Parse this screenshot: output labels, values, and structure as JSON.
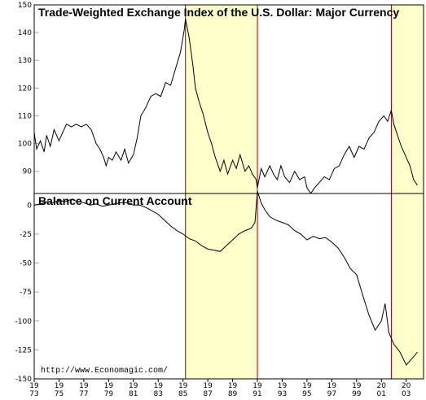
{
  "colors": {
    "shade": "#ffffcc",
    "recession_line": "#990000",
    "series": "#000000",
    "grid": "#aaaaaa"
  },
  "credit": "http://www.Economagic.com/",
  "x_year_range": [
    1973,
    2004.4
  ],
  "x_ticks": [
    {
      "year": 1973,
      "top": "19",
      "bottom": "73"
    },
    {
      "year": 1975,
      "top": "19",
      "bottom": "75"
    },
    {
      "year": 1977,
      "top": "19",
      "bottom": "77"
    },
    {
      "year": 1979,
      "top": "19",
      "bottom": "79"
    },
    {
      "year": 1981,
      "top": "19",
      "bottom": "81"
    },
    {
      "year": 1983,
      "top": "19",
      "bottom": "83"
    },
    {
      "year": 1985,
      "top": "19",
      "bottom": "85"
    },
    {
      "year": 1987,
      "top": "19",
      "bottom": "87"
    },
    {
      "year": 1989,
      "top": "19",
      "bottom": "89"
    },
    {
      "year": 1991,
      "top": "19",
      "bottom": "91"
    },
    {
      "year": 1993,
      "top": "19",
      "bottom": "93"
    },
    {
      "year": 1995,
      "top": "19",
      "bottom": "95"
    },
    {
      "year": 1997,
      "top": "19",
      "bottom": "97"
    },
    {
      "year": 1999,
      "top": "19",
      "bottom": "99"
    },
    {
      "year": 2001,
      "top": "20",
      "bottom": "01"
    },
    {
      "year": 2003,
      "top": "20",
      "bottom": "03"
    }
  ],
  "shaded_periods": [
    [
      1985.2,
      1991.0
    ],
    [
      2001.8,
      2004.4
    ]
  ],
  "recession_lines": [
    1985.2,
    1991.0,
    2001.8
  ],
  "chart_data": [
    {
      "type": "line",
      "title": "Trade-Weighted Exchange Index of the U.S. Dollar: Major Currency",
      "ylim": [
        82,
        150
      ],
      "yticks": [
        90,
        100,
        110,
        120,
        130,
        140,
        150
      ],
      "grid": true,
      "x": [
        1973.0,
        1973.2,
        1973.5,
        1973.8,
        1974.0,
        1974.3,
        1974.6,
        1975.0,
        1975.3,
        1975.6,
        1976.0,
        1976.4,
        1976.8,
        1977.2,
        1977.6,
        1978.0,
        1978.3,
        1978.6,
        1978.8,
        1979.0,
        1979.3,
        1979.6,
        1980.0,
        1980.3,
        1980.6,
        1981.0,
        1981.3,
        1981.6,
        1982.0,
        1982.4,
        1982.8,
        1983.2,
        1983.6,
        1984.0,
        1984.4,
        1984.8,
        1985.1,
        1985.2,
        1985.5,
        1985.8,
        1986.0,
        1986.3,
        1986.6,
        1987.0,
        1987.3,
        1987.6,
        1988.0,
        1988.3,
        1988.6,
        1989.0,
        1989.3,
        1989.6,
        1990.0,
        1990.3,
        1990.6,
        1990.9,
        1991.0,
        1991.3,
        1991.6,
        1992.0,
        1992.3,
        1992.6,
        1992.9,
        1993.2,
        1993.6,
        1994.0,
        1994.4,
        1994.8,
        1995.0,
        1995.3,
        1995.6,
        1996.0,
        1996.4,
        1996.8,
        1997.2,
        1997.6,
        1998.0,
        1998.4,
        1998.8,
        1999.2,
        1999.6,
        2000.0,
        2000.4,
        2000.8,
        2001.2,
        2001.5,
        2001.8,
        2002.0,
        2002.3,
        2002.6,
        2003.0,
        2003.3,
        2003.6,
        2003.9
      ],
      "y": [
        104,
        98,
        101,
        97,
        103,
        99,
        105,
        101,
        104,
        107,
        106,
        107,
        106,
        107,
        105,
        100,
        98,
        95,
        92,
        95,
        94,
        97,
        94,
        98,
        93,
        96,
        102,
        110,
        113,
        117,
        118,
        117,
        122,
        121,
        127,
        133,
        141,
        145,
        138,
        128,
        120,
        115,
        111,
        104,
        100,
        95,
        90,
        94,
        89,
        94,
        91,
        96,
        90,
        92,
        89,
        87,
        84,
        91,
        88,
        92,
        89,
        87,
        92,
        88,
        86,
        90,
        87,
        88,
        84,
        82,
        84,
        86,
        88,
        87,
        91,
        92,
        96,
        99,
        95,
        99,
        98,
        102,
        104,
        108,
        110,
        108,
        112,
        107,
        103,
        99,
        95,
        92,
        87,
        85
      ]
    },
    {
      "type": "line",
      "title": "Balance on Current Account",
      "ylim": [
        -150,
        10
      ],
      "yticks": [
        0,
        -25,
        -50,
        -75,
        -100,
        -125,
        -150
      ],
      "grid": true,
      "x": [
        1973.0,
        1973.5,
        1974.0,
        1974.5,
        1975.0,
        1975.5,
        1976.0,
        1976.5,
        1977.0,
        1977.5,
        1978.0,
        1978.5,
        1979.0,
        1979.5,
        1980.0,
        1980.5,
        1981.0,
        1981.5,
        1982.0,
        1982.5,
        1983.0,
        1983.5,
        1984.0,
        1984.5,
        1985.0,
        1985.5,
        1986.0,
        1986.5,
        1987.0,
        1987.5,
        1988.0,
        1988.5,
        1989.0,
        1989.5,
        1990.0,
        1990.5,
        1990.8,
        1991.0,
        1991.3,
        1991.6,
        1992.0,
        1992.5,
        1993.0,
        1993.5,
        1994.0,
        1994.5,
        1995.0,
        1995.5,
        1996.0,
        1996.5,
        1997.0,
        1997.5,
        1998.0,
        1998.5,
        1999.0,
        1999.5,
        2000.0,
        2000.5,
        2001.0,
        2001.3,
        2001.6,
        2002.0,
        2002.5,
        2003.0,
        2003.5,
        2003.9
      ],
      "y": [
        0,
        1,
        3,
        2,
        4,
        3,
        5,
        3,
        2,
        0,
        1,
        -1,
        0,
        1,
        2,
        2,
        0,
        0,
        -2,
        -5,
        -8,
        -13,
        -18,
        -22,
        -25,
        -29,
        -31,
        -35,
        -38,
        -39,
        -40,
        -35,
        -30,
        -25,
        -22,
        -20,
        -15,
        12,
        2,
        -4,
        -10,
        -13,
        -15,
        -17,
        -22,
        -25,
        -30,
        -27,
        -29,
        -28,
        -32,
        -37,
        -45,
        -55,
        -60,
        -78,
        -95,
        -108,
        -100,
        -85,
        -110,
        -120,
        -127,
        -138,
        -132,
        -127
      ]
    }
  ]
}
